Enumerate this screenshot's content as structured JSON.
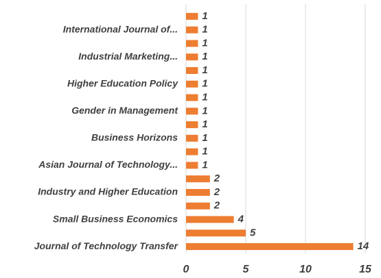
{
  "chart_data": {
    "type": "bar",
    "orientation": "horizontal",
    "categories": [
      null,
      "International Journal of...",
      null,
      "Industrial Marketing...",
      null,
      "Higher Education Policy",
      null,
      "Gender in Management",
      null,
      "Business Horizons",
      null,
      "Asian Journal of Technology...",
      null,
      "Industry and Higher Education",
      null,
      "Small Business Economics",
      null,
      "Journal of Technology Transfer"
    ],
    "values": [
      1,
      1,
      1,
      1,
      1,
      1,
      1,
      1,
      1,
      1,
      1,
      1,
      2,
      2,
      2,
      4,
      5,
      14
    ],
    "color": "#ed7d31",
    "xlim": [
      0,
      15
    ],
    "xticks": [
      0,
      5,
      10,
      15
    ],
    "grid": true
  }
}
